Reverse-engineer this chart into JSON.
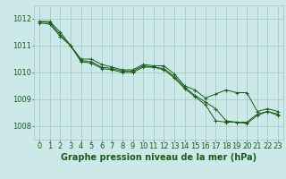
{
  "xlabel": "Graphe pression niveau de la mer (hPa)",
  "background_color": "#cce8e8",
  "grid_color": "#aacccc",
  "line_color": "#1a5c1a",
  "ylim": [
    1007.5,
    1012.5
  ],
  "xlim": [
    -0.5,
    23.5
  ],
  "yticks": [
    1008,
    1009,
    1010,
    1011,
    1012
  ],
  "xticks": [
    0,
    1,
    2,
    3,
    4,
    5,
    6,
    7,
    8,
    9,
    10,
    11,
    12,
    13,
    14,
    15,
    16,
    17,
    18,
    19,
    20,
    21,
    22,
    23
  ],
  "series": [
    [
      1011.9,
      1011.9,
      1011.5,
      1011.0,
      1010.5,
      1010.5,
      1010.3,
      1010.2,
      1010.1,
      1010.1,
      1010.3,
      1010.25,
      1010.25,
      1009.95,
      1009.5,
      1009.35,
      1009.05,
      1009.2,
      1009.35,
      1009.25,
      1009.25,
      1008.55,
      1008.65,
      1008.55
    ],
    [
      1011.9,
      1011.85,
      1011.4,
      1011.0,
      1010.45,
      1010.4,
      1010.2,
      1010.15,
      1010.05,
      1010.05,
      1010.25,
      1010.2,
      1010.15,
      1009.85,
      1009.45,
      1009.15,
      1008.9,
      1008.65,
      1008.2,
      1008.15,
      1008.15,
      1008.45,
      1008.55,
      1008.45
    ],
    [
      1011.85,
      1011.8,
      1011.35,
      1011.0,
      1010.4,
      1010.35,
      1010.15,
      1010.1,
      1010.0,
      1010.0,
      1010.2,
      1010.2,
      1010.1,
      1009.8,
      1009.4,
      1009.1,
      1008.8,
      1008.2,
      1008.15,
      1008.15,
      1008.1,
      1008.4,
      1008.55,
      1008.4
    ]
  ],
  "xlabel_fontsize": 7,
  "tick_fontsize": 6,
  "linewidth": 0.7,
  "markersize": 2.5
}
